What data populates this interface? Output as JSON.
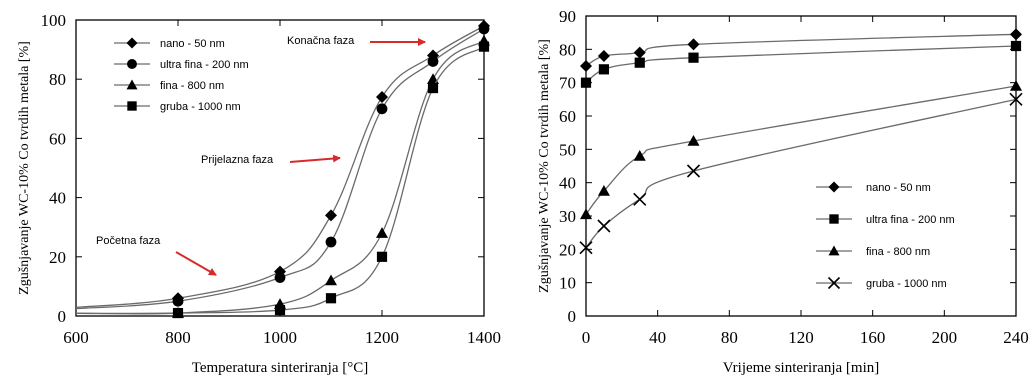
{
  "chart_data": [
    {
      "type": "line",
      "xlabel": "Temperatura sinteriranja [°C]",
      "ylabel": "Zgušnjavanje WC-10% Co tvrdih metala [%]",
      "xlim": [
        600,
        1400
      ],
      "ylim": [
        0,
        100
      ],
      "xticks": [
        "600",
        "800",
        "1000",
        "1200",
        "1400"
      ],
      "yticks": [
        "0",
        "20",
        "40",
        "60",
        "80",
        "100"
      ],
      "grid": false,
      "legend": "top-left",
      "series": [
        {
          "name": "nano - 50 nm",
          "marker": "diamond",
          "x": [
            800,
            1000,
            1100,
            1200,
            1300,
            1400
          ],
          "y": [
            6,
            15,
            34,
            74,
            88,
            98
          ]
        },
        {
          "name": "ultra fina - 200 nm",
          "marker": "circle",
          "x": [
            800,
            1000,
            1100,
            1200,
            1300,
            1400
          ],
          "y": [
            5,
            13,
            25,
            70,
            86,
            97
          ]
        },
        {
          "name": "fina - 800 nm",
          "marker": "triangle",
          "x": [
            800,
            1000,
            1100,
            1200,
            1300,
            1400
          ],
          "y": [
            1,
            4,
            12,
            28,
            80,
            93
          ]
        },
        {
          "name": "gruba - 1000 nm",
          "marker": "square",
          "x": [
            800,
            1000,
            1100,
            1200,
            1300,
            1400
          ],
          "y": [
            1,
            2,
            6,
            20,
            77,
            91
          ]
        }
      ],
      "annotations": [
        {
          "text": "Konačna faza",
          "x": 1210,
          "y": 93
        },
        {
          "text": "Prijelazna faza",
          "x": 1020,
          "y": 53
        },
        {
          "text": "Početna faza",
          "x": 630,
          "y": 24
        }
      ]
    },
    {
      "type": "line",
      "xlabel": "Vrijeme sinteriranja [min]",
      "ylabel": "Zgušnjavanje WC-10% Co tvrdih metala [%]",
      "xlim": [
        0,
        240
      ],
      "ylim": [
        0,
        90
      ],
      "xticks": [
        "0",
        "40",
        "80",
        "120",
        "160",
        "200",
        "240"
      ],
      "yticks": [
        "0",
        "10",
        "20",
        "30",
        "40",
        "50",
        "60",
        "70",
        "80",
        "90"
      ],
      "grid": false,
      "legend": "right",
      "series": [
        {
          "name": "nano - 50 nm",
          "marker": "diamond",
          "x": [
            0,
            10,
            30,
            60,
            240
          ],
          "y": [
            75,
            78,
            79,
            81.5,
            84.5
          ]
        },
        {
          "name": "ultra fina - 200 nm",
          "marker": "square",
          "x": [
            0,
            10,
            30,
            60,
            240
          ],
          "y": [
            70,
            74,
            76,
            77.5,
            81
          ]
        },
        {
          "name": "fina - 800 nm",
          "marker": "triangle",
          "x": [
            0,
            10,
            30,
            60,
            240
          ],
          "y": [
            30.5,
            37.5,
            48,
            52.5,
            69
          ]
        },
        {
          "name": "gruba - 1000 nm",
          "marker": "cross",
          "x": [
            0,
            10,
            30,
            60,
            240
          ],
          "y": [
            20.5,
            27,
            35,
            43.5,
            65
          ]
        }
      ]
    }
  ],
  "colors": {
    "ink": "#000000",
    "arrow": "#d72b2b",
    "line": "#6b6b6b"
  }
}
